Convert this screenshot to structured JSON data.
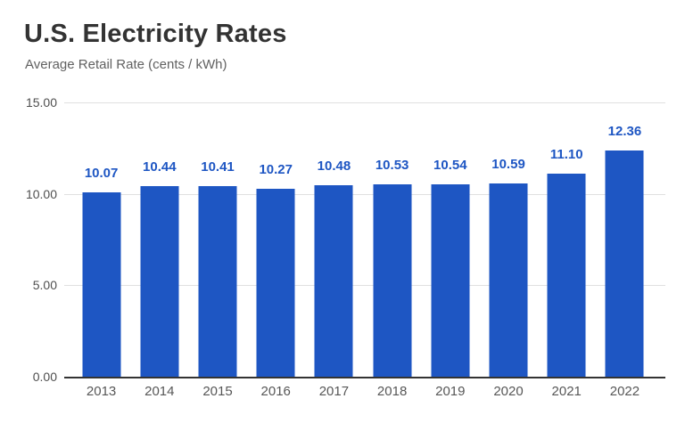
{
  "header": {
    "title": "U.S. Electricity Rates",
    "subtitle": "Average Retail Rate (cents / kWh)"
  },
  "chart_data": {
    "type": "bar",
    "title": "U.S. Electricity Rates",
    "subtitle": "Average Retail Rate (cents / kWh)",
    "categories": [
      "2013",
      "2014",
      "2015",
      "2016",
      "2017",
      "2018",
      "2019",
      "2020",
      "2021",
      "2022"
    ],
    "values": [
      10.07,
      10.44,
      10.41,
      10.27,
      10.48,
      10.53,
      10.54,
      10.59,
      11.1,
      12.36
    ],
    "value_labels": [
      "10.07",
      "10.44",
      "10.41",
      "10.27",
      "10.48",
      "10.53",
      "10.54",
      "10.59",
      "11.10",
      "12.36"
    ],
    "xlabel": "",
    "ylabel": "",
    "ylim": [
      0,
      15
    ],
    "yticks": [
      0,
      5,
      10,
      15
    ],
    "ytick_labels": [
      "0.00",
      "5.00",
      "10.00",
      "15.00"
    ],
    "grid": "horizontal",
    "legend": "none",
    "colors": {
      "bar": "#1e56c3",
      "value_label": "#1e56c3",
      "axis_line": "#333333",
      "gridline": "#e0e0e0",
      "tick_label": "#4f4f4f",
      "category_label": "#575757",
      "title": "#333333",
      "subtitle": "#616161"
    }
  }
}
